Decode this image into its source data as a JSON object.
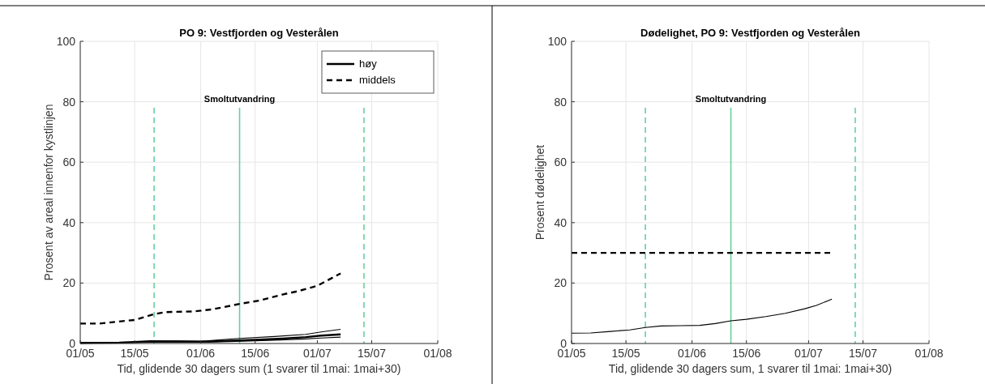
{
  "chart_data": [
    {
      "type": "line",
      "title": "PO 9: Vestfjorden og Vesterålen",
      "xlabel": "Tid, glidende 30 dagers sum (1 svarer til 1mai: 1mai+30)",
      "ylabel": "Prosent av areal innenfor kystlinjen",
      "xlim": [
        "--05-01",
        "--08-01"
      ],
      "ylim": [
        0,
        100
      ],
      "xticks": [
        {
          "value": "--05-01",
          "label": "01/05"
        },
        {
          "value": "--05-15",
          "label": "15/05"
        },
        {
          "value": "--06-01",
          "label": "01/06"
        },
        {
          "value": "--06-15",
          "label": "15/06"
        },
        {
          "value": "--07-01",
          "label": "01/07"
        },
        {
          "value": "--07-15",
          "label": "15/07"
        },
        {
          "value": "--08-01",
          "label": "01/08"
        }
      ],
      "yticks": [
        0,
        20,
        40,
        60,
        80,
        100
      ],
      "grid": true,
      "legend": "top right",
      "series": [
        {
          "name": "høy",
          "color": "#000000",
          "line_style": "solid",
          "x": [
            "--05-01",
            "--05-11",
            "--05-17",
            "--05-26",
            "--06-01",
            "--06-08",
            "--06-15",
            "--06-22",
            "--06-28",
            "--07-02",
            "--07-07"
          ],
          "values": [
            0.2,
            0.3,
            0.6,
            0.7,
            0.6,
            0.9,
            1.2,
            1.6,
            2.1,
            2.6,
            3.0
          ]
        },
        {
          "name": "middels",
          "color": "#000000",
          "line_style": "dashed",
          "x": [
            "--05-01",
            "--05-06",
            "--05-15",
            "--05-20",
            "--05-23",
            "--05-30",
            "--06-04",
            "--06-11",
            "--06-16",
            "--06-22",
            "--06-26",
            "--07-01",
            "--07-07"
          ],
          "values": [
            6.6,
            6.6,
            7.8,
            9.7,
            10.4,
            10.6,
            11.3,
            13.1,
            14.2,
            16.2,
            17.3,
            19.1,
            23.2
          ]
        },
        {
          "color": "#000000",
          "line_style": "solid",
          "x": [
            "--05-01",
            "--05-15",
            "--05-19",
            "--06-01",
            "--06-10",
            "--06-20",
            "--06-28",
            "--07-02",
            "--07-07"
          ],
          "values": [
            0.2,
            0.4,
            0.9,
            0.7,
            1.6,
            2.3,
            3.0,
            3.8,
            4.7
          ]
        },
        {
          "color": "#000000",
          "line_style": "solid",
          "x": [
            "--05-01",
            "--05-19",
            "--06-01",
            "--06-10",
            "--06-20",
            "--06-28",
            "--07-02",
            "--07-07"
          ],
          "values": [
            0.1,
            0.4,
            0.4,
            0.7,
            1.1,
            1.5,
            1.8,
            2.1
          ]
        }
      ],
      "ref_lines": [
        {
          "axis": "x",
          "value": "--05-20",
          "color": "#66d19e",
          "line_style": "dashed"
        },
        {
          "axis": "x",
          "value": "--06-11",
          "label": "Smoltutvandring",
          "color": "#66d19e",
          "line_style": "solid"
        },
        {
          "axis": "x",
          "value": "--07-13",
          "color": "#66d19e",
          "line_style": "dashed"
        }
      ]
    },
    {
      "type": "line",
      "title": "Dødelighet, PO 9: Vestfjorden og Vesterålen",
      "xlabel": "Tid, glidende 30 dagers sum, 1 svarer til 1mai: 1mai+30)",
      "ylabel": "Prosent dødelighet",
      "xlim": [
        "--05-01",
        "--08-01"
      ],
      "ylim": [
        0,
        100
      ],
      "xticks": [
        {
          "value": "--05-01",
          "label": "01/05"
        },
        {
          "value": "--05-15",
          "label": "15/05"
        },
        {
          "value": "--06-01",
          "label": "01/06"
        },
        {
          "value": "--06-15",
          "label": "15/06"
        },
        {
          "value": "--07-01",
          "label": "01/07"
        },
        {
          "value": "--07-15",
          "label": "15/07"
        },
        {
          "value": "--08-01",
          "label": "01/08"
        }
      ],
      "yticks": [
        0,
        20,
        40,
        60,
        80,
        100
      ],
      "grid": true,
      "series": [
        {
          "color": "#000000",
          "line_style": "solid",
          "x": [
            "--05-01",
            "--05-06",
            "--05-11",
            "--05-16",
            "--05-20",
            "--05-24",
            "--05-29",
            "--06-03",
            "--06-07",
            "--06-11",
            "--06-15",
            "--06-20",
            "--06-25",
            "--06-30",
            "--07-03",
            "--07-07"
          ],
          "values": [
            3.4,
            3.5,
            4.0,
            4.5,
            5.3,
            5.8,
            5.9,
            6.0,
            6.6,
            7.5,
            8.0,
            8.9,
            10.0,
            11.5,
            12.6,
            14.7
          ]
        },
        {
          "color": "#000000",
          "line_style": "dashed",
          "x": [
            "--05-01",
            "--07-07"
          ],
          "values": [
            30,
            30
          ]
        }
      ],
      "ref_lines": [
        {
          "axis": "x",
          "value": "--05-20",
          "color": "#66d19e",
          "line_style": "dashed"
        },
        {
          "axis": "x",
          "value": "--06-11",
          "label": "Smoltutvandring",
          "color": "#66d19e",
          "line_style": "solid"
        },
        {
          "axis": "x",
          "value": "--07-13",
          "color": "#66d19e",
          "line_style": "dashed"
        }
      ]
    }
  ]
}
